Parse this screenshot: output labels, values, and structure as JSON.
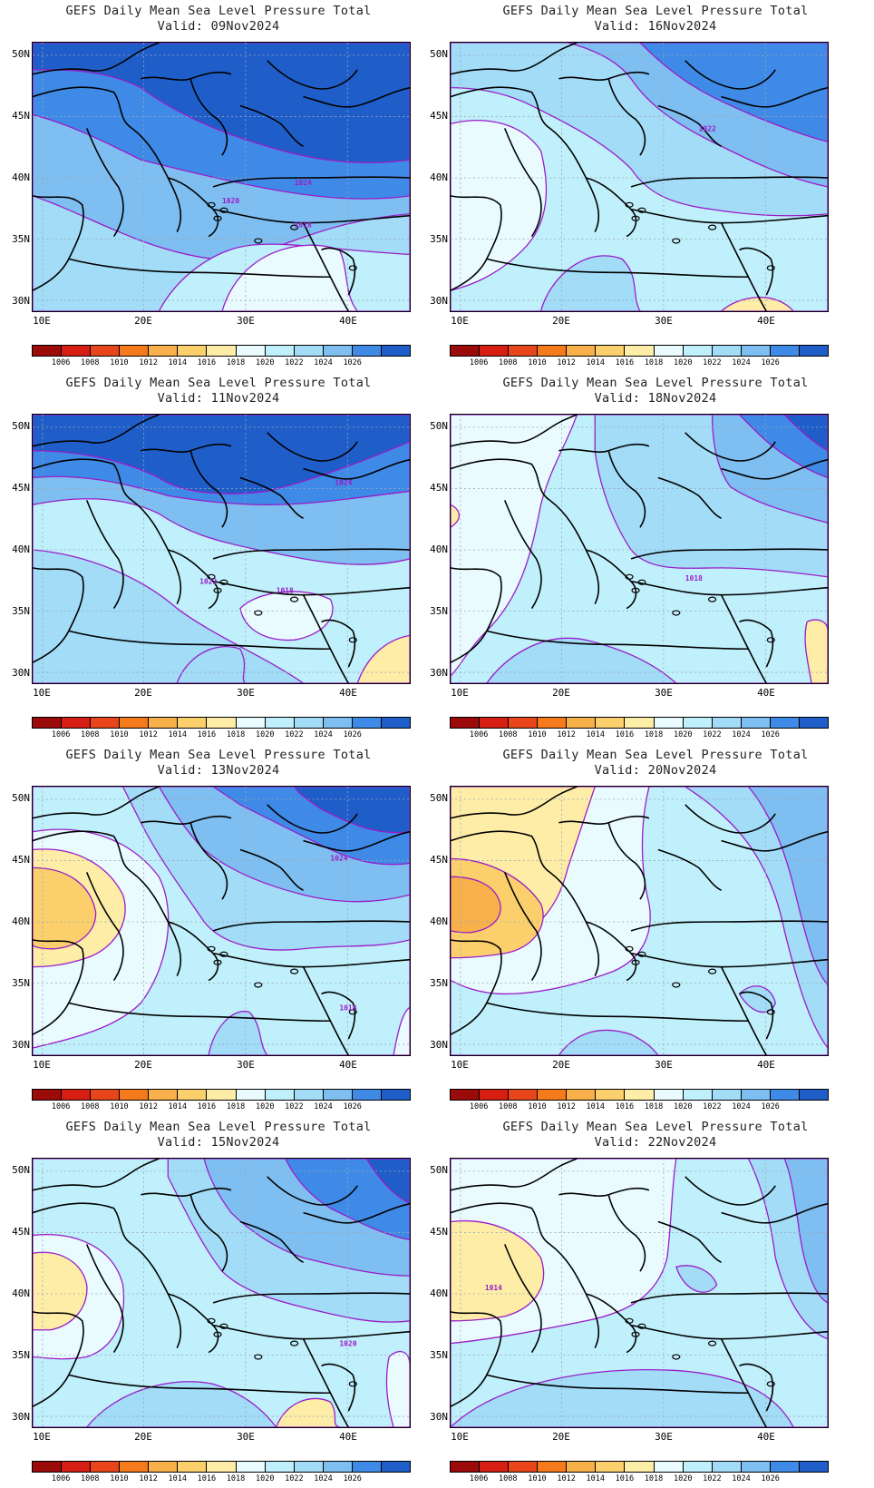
{
  "title": "GEFS Daily Mean Sea Level Pressure Total",
  "y_ticks": [
    "50N",
    "45N",
    "40N",
    "35N",
    "30N"
  ],
  "x_ticks": [
    "10E",
    "20E",
    "30E",
    "40E"
  ],
  "colorbar": {
    "labels": [
      "1006",
      "1008",
      "1010",
      "1012",
      "1014",
      "1016",
      "1018",
      "1020",
      "1022",
      "1024",
      "1026"
    ],
    "colors": [
      "#9d0a0a",
      "#d61e12",
      "#e8461a",
      "#f47a1c",
      "#f7b04a",
      "#fbd06c",
      "#fdeda6",
      "#e9fbff",
      "#c0f0fb",
      "#a2dcf7",
      "#7ebef0",
      "#3f8ae6",
      "#1f5ec9"
    ]
  },
  "panels": [
    {
      "valid": "Valid: 09Nov2024",
      "labels": [
        "1024",
        "1020",
        "1018"
      ],
      "scheme": "09"
    },
    {
      "valid": "Valid: 16Nov2024",
      "labels": [
        "1022"
      ],
      "scheme": "16"
    },
    {
      "valid": "Valid: 11Nov2024",
      "labels": [
        "1024",
        "1022",
        "1018"
      ],
      "scheme": "11"
    },
    {
      "valid": "Valid: 18Nov2024",
      "labels": [
        "1018"
      ],
      "scheme": "18"
    },
    {
      "valid": "Valid: 13Nov2024",
      "labels": [
        "1024",
        "1018"
      ],
      "scheme": "13"
    },
    {
      "valid": "Valid: 20Nov2024",
      "labels": [],
      "scheme": "20"
    },
    {
      "valid": "Valid: 15Nov2024",
      "labels": [
        "1020"
      ],
      "scheme": "15"
    },
    {
      "valid": "Valid: 22Nov2024",
      "labels": [
        "1014"
      ],
      "scheme": "22"
    }
  ]
}
